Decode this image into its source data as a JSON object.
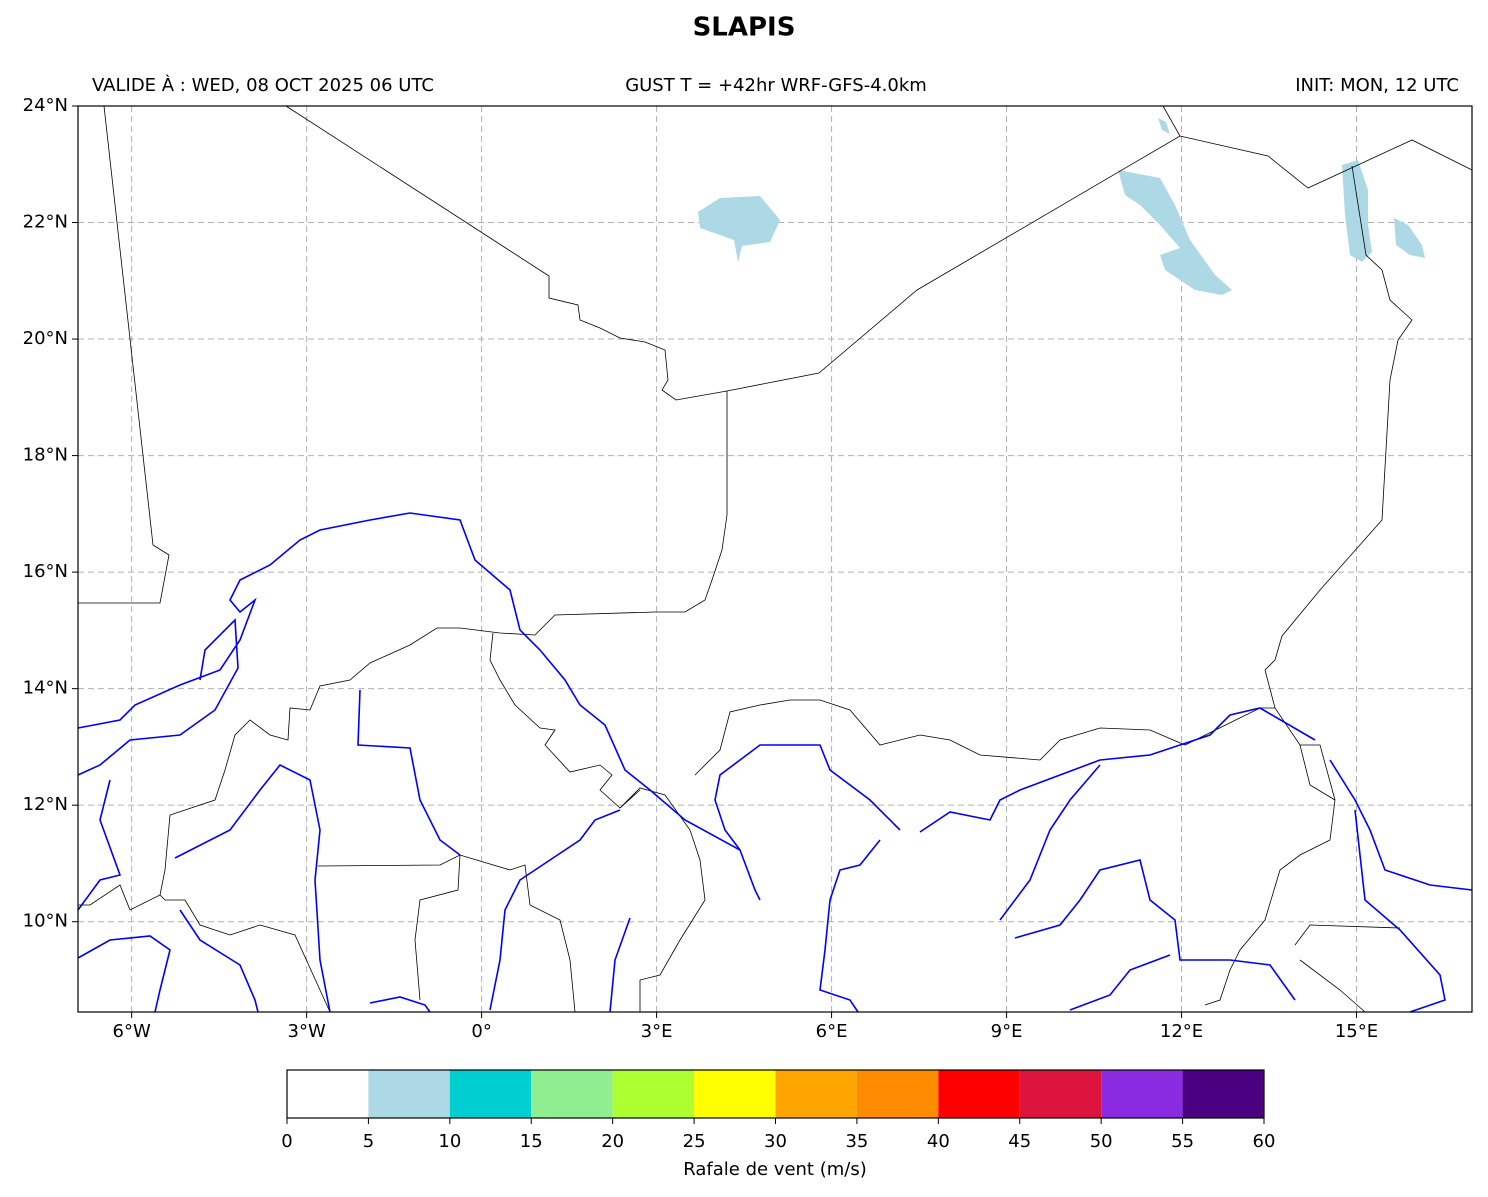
{
  "title": "SLAPIS",
  "subtitle_left": "VALIDE À : WED, 08 OCT 2025 06 UTC",
  "subtitle_center": "GUST T = +42hr WRF-GFS-4.0km",
  "subtitle_right": "INIT: MON, 12 UTC",
  "map": {
    "xlim": [
      -6.92,
      16.98
    ],
    "ylim": [
      8.45,
      24
    ],
    "xticks": [
      {
        "value": -6,
        "label": "6°W"
      },
      {
        "value": -3,
        "label": "3°W"
      },
      {
        "value": 0,
        "label": "0°"
      },
      {
        "value": 3,
        "label": "3°E"
      },
      {
        "value": 6,
        "label": "6°E"
      },
      {
        "value": 9,
        "label": "9°E"
      },
      {
        "value": 12,
        "label": "12°E"
      },
      {
        "value": 15,
        "label": "15°E"
      }
    ],
    "yticks": [
      {
        "value": 10,
        "label": "10°N"
      },
      {
        "value": 12,
        "label": "12°N"
      },
      {
        "value": 14,
        "label": "14°N"
      },
      {
        "value": 16,
        "label": "16°N"
      },
      {
        "value": 18,
        "label": "18°N"
      },
      {
        "value": 20,
        "label": "20°N"
      },
      {
        "value": 22,
        "label": "22°N"
      },
      {
        "value": 24,
        "label": "24°N"
      }
    ],
    "grid": true
  },
  "colorbar": {
    "bounds": [
      0,
      5,
      10,
      15,
      20,
      25,
      30,
      35,
      40,
      45,
      50,
      55,
      60
    ],
    "colors": [
      "#ffffff",
      "#add8e6",
      "#00ced1",
      "#90ee90",
      "#adff2f",
      "#ffff00",
      "#ffa500",
      "#ff8c00",
      "#ff0000",
      "#dc143c",
      "#8a2be2",
      "#4b0082"
    ],
    "label": "Rafale de vent (m/s)"
  }
}
